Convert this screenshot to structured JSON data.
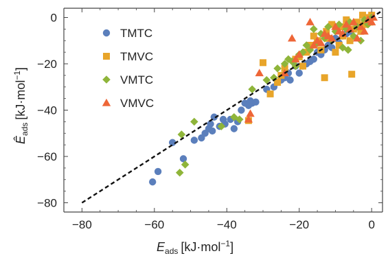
{
  "chart_data": {
    "type": "scatter",
    "xlabel": {
      "main": "E",
      "sub": "ads",
      "unit": "[kJ·mol",
      "exp": "−1",
      "close": "]"
    },
    "ylabel": {
      "main": "Ê",
      "sub": "ads",
      "unit": "[kJ·mol",
      "exp": "−1",
      "close": "]"
    },
    "xlim": [
      -85,
      3
    ],
    "ylim": [
      -84,
      4
    ],
    "xticks": [
      -80,
      -60,
      -40,
      -20,
      0
    ],
    "yticks": [
      -80,
      -60,
      -40,
      -20,
      0
    ],
    "xtick_labels": [
      "−80",
      "−60",
      "−40",
      "−20",
      "0"
    ],
    "ytick_labels": [
      "−80",
      "−60",
      "−40",
      "−20",
      "0"
    ],
    "grid": false,
    "legend_position": "top-left",
    "reference_line": {
      "style": "dashed",
      "color": "#111111",
      "points": [
        [
          -80,
          -80
        ],
        [
          3,
          3
        ]
      ]
    },
    "series": [
      {
        "name": "TMTC",
        "marker": "circle",
        "color": "#5b7fbc",
        "points": [
          [
            -60.5,
            -71
          ],
          [
            -59,
            -66.5
          ],
          [
            -55,
            -54
          ],
          [
            -52,
            -61
          ],
          [
            -49,
            -53
          ],
          [
            -47,
            -52
          ],
          [
            -46,
            -50
          ],
          [
            -45,
            -48
          ],
          [
            -44.5,
            -46
          ],
          [
            -44,
            -49
          ],
          [
            -43.5,
            -43
          ],
          [
            -42,
            -47
          ],
          [
            -41,
            -44
          ],
          [
            -40.5,
            -46
          ],
          [
            -39,
            -44
          ],
          [
            -38,
            -48
          ],
          [
            -37,
            -45
          ],
          [
            -36,
            -40
          ],
          [
            -35,
            -37
          ],
          [
            -34,
            -38
          ],
          [
            -33.5,
            -36
          ],
          [
            -33,
            -37
          ],
          [
            -32,
            -36.5
          ],
          [
            -29,
            -31
          ],
          [
            -27,
            -30
          ],
          [
            -26,
            -28
          ],
          [
            -25,
            -27
          ],
          [
            -24,
            -26
          ],
          [
            -23,
            -24
          ],
          [
            -22.5,
            -27
          ],
          [
            -21,
            -21
          ],
          [
            -20,
            -24
          ],
          [
            -19,
            -21
          ],
          [
            -18,
            -20
          ],
          [
            -17,
            -19
          ],
          [
            -16,
            -18
          ],
          [
            -15,
            -15
          ],
          [
            -14,
            -16
          ],
          [
            -13,
            -14
          ],
          [
            -12,
            -12
          ],
          [
            -11,
            -13
          ],
          [
            -10,
            -9
          ],
          [
            -9,
            -11
          ],
          [
            -8,
            -8
          ],
          [
            -7,
            -7
          ],
          [
            -6,
            -6
          ],
          [
            -5,
            -5
          ],
          [
            -4,
            -3
          ],
          [
            -3,
            -4
          ],
          [
            -2,
            -2
          ],
          [
            -1,
            -1
          ],
          [
            0,
            0
          ]
        ]
      },
      {
        "name": "TMVC",
        "marker": "square",
        "color": "#e8a52a",
        "points": [
          [
            -34,
            -44.5
          ],
          [
            -30,
            -19.5
          ],
          [
            -28,
            -33
          ],
          [
            -26,
            -28
          ],
          [
            -25,
            -25
          ],
          [
            -24,
            -22
          ],
          [
            -21,
            -18
          ],
          [
            -20,
            -17
          ],
          [
            -19,
            -21
          ],
          [
            -18,
            -15
          ],
          [
            -17,
            -12
          ],
          [
            -16,
            -8
          ],
          [
            -15,
            -10
          ],
          [
            -14,
            -14
          ],
          [
            -13,
            -26
          ],
          [
            -12.5,
            -6
          ],
          [
            -12,
            -9
          ],
          [
            -11,
            -3
          ],
          [
            -10,
            -15
          ],
          [
            -9,
            -12
          ],
          [
            -8.5,
            -4
          ],
          [
            -8,
            -8
          ],
          [
            -7,
            -1
          ],
          [
            -6,
            -10
          ],
          [
            -5.5,
            -24.5
          ],
          [
            -5,
            -5
          ],
          [
            -4,
            -2
          ],
          [
            -3,
            -6
          ],
          [
            -2.5,
            1
          ],
          [
            -2,
            -3
          ],
          [
            -1.5,
            0
          ],
          [
            -1,
            -1
          ],
          [
            -0.5,
            -2
          ],
          [
            0,
            1
          ]
        ]
      },
      {
        "name": "VMTC",
        "marker": "diamond",
        "color": "#8fb53a",
        "points": [
          [
            -53,
            -67
          ],
          [
            -52.5,
            -50.5
          ],
          [
            -51.5,
            -63.5
          ],
          [
            -49,
            -45
          ],
          [
            -41.5,
            -47
          ],
          [
            -38,
            -43
          ],
          [
            -36.5,
            -44
          ],
          [
            -33,
            -31
          ],
          [
            -29,
            -27
          ],
          [
            -27,
            -26
          ],
          [
            -26,
            -22
          ],
          [
            -24,
            -20
          ],
          [
            -23,
            -18
          ],
          [
            -22,
            -19
          ],
          [
            -21,
            -21
          ],
          [
            -20,
            -16
          ],
          [
            -19,
            -15
          ],
          [
            -18,
            -12
          ],
          [
            -17,
            -14
          ],
          [
            -16,
            -5
          ],
          [
            -15,
            -11
          ],
          [
            -14,
            -7
          ],
          [
            -13,
            -9
          ],
          [
            -12,
            -4
          ],
          [
            -11,
            -10
          ],
          [
            -10,
            -6
          ],
          [
            -9,
            -3
          ],
          [
            -8,
            -13
          ],
          [
            -7,
            -5
          ],
          [
            -6.5,
            -14
          ],
          [
            -6,
            -2
          ],
          [
            -5,
            -8
          ],
          [
            -4,
            -4
          ],
          [
            -3,
            -10
          ],
          [
            -2,
            -1
          ],
          [
            -1,
            -3
          ],
          [
            0,
            0
          ]
        ]
      },
      {
        "name": "VMVC",
        "marker": "triangle",
        "color": "#ee6637",
        "points": [
          [
            -34,
            -44
          ],
          [
            -33.5,
            -41.5
          ],
          [
            -31,
            -24
          ],
          [
            -24,
            -24
          ],
          [
            -22,
            -9
          ],
          [
            -21,
            -18
          ],
          [
            -20,
            -16
          ],
          [
            -17,
            -2
          ],
          [
            -16,
            -12
          ],
          [
            -15,
            -10
          ],
          [
            -14,
            -11
          ],
          [
            -13,
            -7
          ],
          [
            -12,
            -8
          ],
          [
            -11,
            -9
          ],
          [
            -10,
            -4
          ],
          [
            -9,
            -6
          ],
          [
            -8,
            -7
          ],
          [
            -7,
            -3
          ],
          [
            -6,
            -5
          ],
          [
            -5,
            -2
          ],
          [
            -4,
            -9
          ],
          [
            -3,
            -4
          ],
          [
            -2,
            -6
          ],
          [
            -1,
            -1
          ],
          [
            0,
            -2
          ],
          [
            0.5,
            0
          ]
        ]
      }
    ]
  }
}
